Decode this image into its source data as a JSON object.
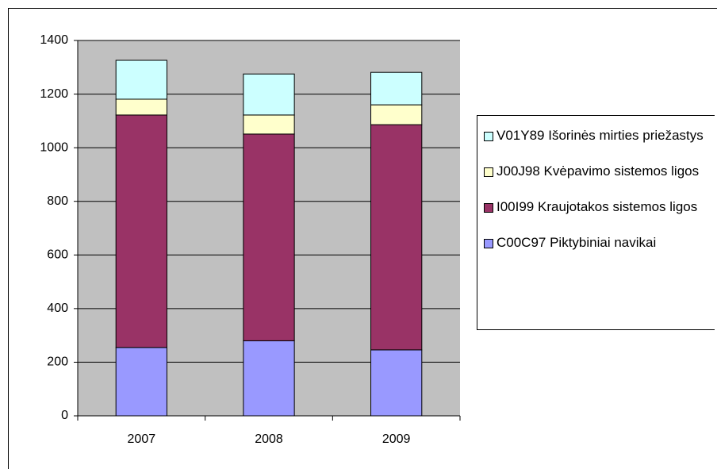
{
  "chart_data": {
    "type": "stacked-bar",
    "categories": [
      "2007",
      "2008",
      "2009"
    ],
    "series": [
      {
        "name": "C00C97 Piktybiniai navikai",
        "color": "#9999ff",
        "values": [
          255,
          280,
          246
        ]
      },
      {
        "name": "I00I99 Kraujotakos sistemos ligos",
        "color": "#993366",
        "values": [
          867,
          771,
          840
        ]
      },
      {
        "name": "J00J98 Kvėpavimo sistemos ligos",
        "color": "#ffffcc",
        "values": [
          59,
          71,
          74
        ]
      },
      {
        "name": "V01Y89 Išorinės mirties priežastys",
        "color": "#ccffff",
        "values": [
          145,
          153,
          121
        ]
      }
    ],
    "ylim": [
      0,
      1400
    ],
    "yticks": [
      0,
      200,
      400,
      600,
      800,
      1000,
      1200,
      1400
    ],
    "grid": true,
    "plot_background": "#c0c0c0"
  }
}
